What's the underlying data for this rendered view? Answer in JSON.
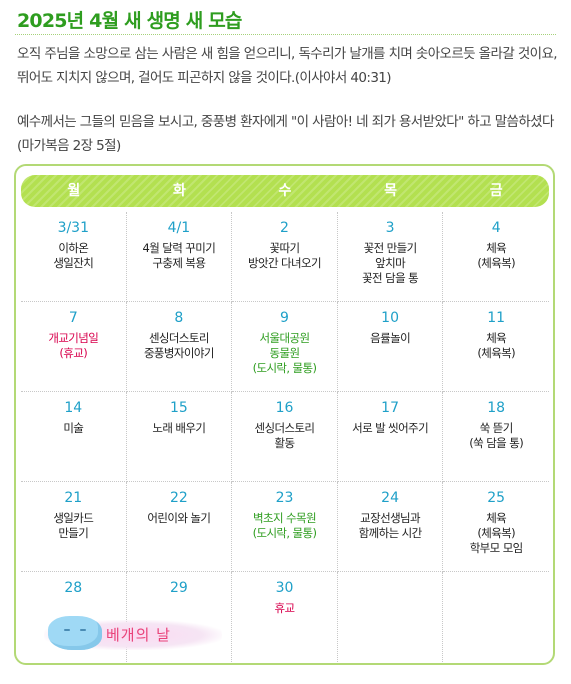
{
  "title": "2025년 4월  새 생명 새 모습",
  "verse1": "오직 주님을 소망으로 삼는 사람은 새 힘을 얻으리니, 독수리가 날개를 치며 솟아오르듯 올라갈 것이요, 뛰어도 지치지 않으며, 걸어도 피곤하지 않을 것이다.(이사야서 40:31)",
  "verse2": "예수께서는 그들의 믿음을 보시고, 중풍병 환자에게 \"이 사람아! 네 죄가 용서받았다\" 하고 말씀하셨다 (마가복음 2장 5절)",
  "weekdays": [
    "월",
    "화",
    "수",
    "목",
    "금"
  ],
  "weeks": [
    [
      {
        "day": "3/31",
        "event": "이하온\n생일잔치",
        "color": "normal"
      },
      {
        "day": "4/1",
        "event": "4월 달력 꾸미기\n구충제 복용",
        "color": "normal"
      },
      {
        "day": "2",
        "event": "꽃따기\n방앗간 다녀오기",
        "color": "normal"
      },
      {
        "day": "3",
        "event": "꽃전 만들기\n앞치마\n꽃전 담을 통",
        "color": "normal"
      },
      {
        "day": "4",
        "event": "체육\n(체육복)",
        "color": "normal"
      }
    ],
    [
      {
        "day": "7",
        "event": "개교기념일\n(휴교)",
        "color": "red"
      },
      {
        "day": "8",
        "event": "센싱더스토리\n중풍병자이야기",
        "color": "normal"
      },
      {
        "day": "9",
        "event": "서울대공원\n동물원\n(도시락, 물통)",
        "color": "green"
      },
      {
        "day": "10",
        "event": "음률놀이",
        "color": "normal"
      },
      {
        "day": "11",
        "event": "체육\n(체육복)",
        "color": "normal"
      }
    ],
    [
      {
        "day": "14",
        "event": "미술",
        "color": "normal"
      },
      {
        "day": "15",
        "event": "노래 배우기",
        "color": "normal"
      },
      {
        "day": "16",
        "event": "센싱더스토리\n활동",
        "color": "normal"
      },
      {
        "day": "17",
        "event": "서로 발 씻어주기",
        "color": "normal"
      },
      {
        "day": "18",
        "event": "쑥 뜯기\n(쑥 담을 통)",
        "color": "normal"
      }
    ],
    [
      {
        "day": "21",
        "event": "생일카드\n만들기",
        "color": "normal"
      },
      {
        "day": "22",
        "event": "어린이와 놀기",
        "color": "normal"
      },
      {
        "day": "23",
        "event": "벽초지 수목원\n(도시락, 물통)",
        "color": "green"
      },
      {
        "day": "24",
        "event": "교장선생님과\n함께하는 시간",
        "color": "normal"
      },
      {
        "day": "25",
        "event": "체육\n(체육복)\n학부모 모임",
        "color": "normal"
      }
    ],
    [
      {
        "day": "28",
        "event": "",
        "color": "normal"
      },
      {
        "day": "29",
        "event": "",
        "color": "normal"
      },
      {
        "day": "30",
        "event": "휴교",
        "color": "red"
      },
      {
        "day": "",
        "event": "",
        "color": "normal"
      },
      {
        "day": "",
        "event": "",
        "color": "normal"
      }
    ]
  ],
  "pillow_caption": "베개의 날",
  "colors": {
    "title": "#2e9d1f",
    "header": "#b3e050",
    "day_number": "#1fa0c8",
    "holiday": "#d8004c",
    "outing": "#2e9d1f"
  }
}
